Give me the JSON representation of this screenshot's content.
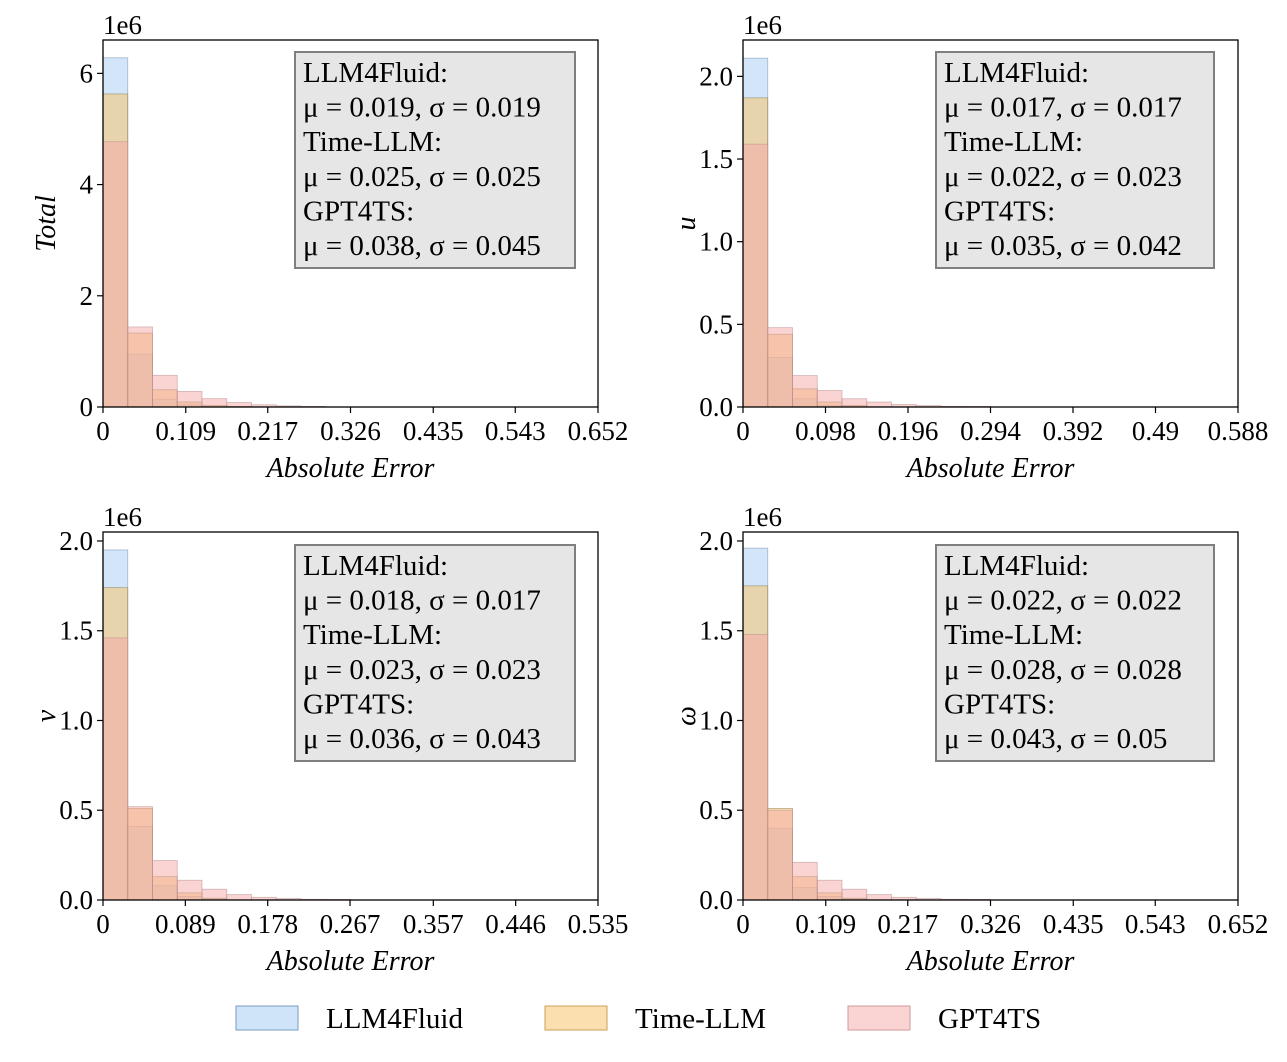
{
  "colors": {
    "LLM4Fluid": "#a8cdf3",
    "Time-LLM": "#f7c46e",
    "GPT4TS": "#f6a8a8",
    "box_fill": "#e6e6e6",
    "box_stroke": "#7f7f7f"
  },
  "legend": {
    "items": [
      {
        "label": "LLM4Fluid",
        "color_key": "LLM4Fluid"
      },
      {
        "label": "Time-LLM",
        "color_key": "Time-LLM"
      },
      {
        "label": "GPT4TS",
        "color_key": "GPT4TS"
      }
    ]
  },
  "chart_data": [
    {
      "type": "bar",
      "subtype": "histogram",
      "ylabel": "Total",
      "xlabel": "Absolute Error",
      "y_offset_label": "1e6",
      "xlim": [
        0,
        0.652
      ],
      "ylim": [
        0,
        6.6
      ],
      "xticks": [
        0,
        0.109,
        0.217,
        0.326,
        0.435,
        0.543,
        0.652
      ],
      "xtick_labels": [
        "0",
        "0.109",
        "0.217",
        "0.326",
        "0.435",
        "0.543",
        "0.652"
      ],
      "yticks": [
        0,
        2,
        4,
        6
      ],
      "ytick_labels": [
        "0",
        "2",
        "4",
        "6"
      ],
      "bin_width": 0.0326,
      "series": [
        {
          "name": "LLM4Fluid",
          "values": [
            6.28,
            0.95,
            0.14,
            0.04,
            0.01,
            0.0,
            0,
            0,
            0,
            0,
            0,
            0,
            0,
            0,
            0,
            0,
            0,
            0,
            0,
            0
          ]
        },
        {
          "name": "Time-LLM",
          "values": [
            5.63,
            1.33,
            0.31,
            0.09,
            0.03,
            0.01,
            0,
            0,
            0,
            0,
            0,
            0,
            0,
            0,
            0,
            0,
            0,
            0,
            0,
            0
          ]
        },
        {
          "name": "GPT4TS",
          "values": [
            4.77,
            1.44,
            0.57,
            0.28,
            0.15,
            0.08,
            0.04,
            0.02,
            0.01,
            0.0,
            0,
            0,
            0,
            0,
            0,
            0,
            0,
            0,
            0,
            0
          ]
        }
      ],
      "stats_lines": [
        "LLM4Fluid:",
        "μ = 0.019, σ = 0.019",
        "Time-LLM:",
        "μ = 0.025, σ = 0.025",
        "GPT4TS:",
        "μ = 0.038, σ = 0.045"
      ]
    },
    {
      "type": "bar",
      "subtype": "histogram",
      "ylabel": "u",
      "xlabel": "Absolute Error",
      "y_offset_label": "1e6",
      "xlim": [
        0,
        0.588
      ],
      "ylim": [
        0,
        2.22
      ],
      "xticks": [
        0,
        0.098,
        0.196,
        0.294,
        0.392,
        0.49,
        0.588
      ],
      "xtick_labels": [
        "0",
        "0.098",
        "0.196",
        "0.294",
        "0.392",
        "0.49",
        "0.588"
      ],
      "yticks": [
        0,
        0.5,
        1.0,
        1.5,
        2.0
      ],
      "ytick_labels": [
        "0.0",
        "0.5",
        "1.0",
        "1.5",
        "2.0"
      ],
      "bin_width": 0.0294,
      "series": [
        {
          "name": "LLM4Fluid",
          "values": [
            2.11,
            0.3,
            0.05,
            0.01,
            0.0,
            0,
            0,
            0,
            0,
            0,
            0,
            0,
            0,
            0,
            0,
            0,
            0,
            0,
            0,
            0
          ]
        },
        {
          "name": "Time-LLM",
          "values": [
            1.87,
            0.44,
            0.11,
            0.03,
            0.01,
            0.0,
            0,
            0,
            0,
            0,
            0,
            0,
            0,
            0,
            0,
            0,
            0,
            0,
            0,
            0
          ]
        },
        {
          "name": "GPT4TS",
          "values": [
            1.59,
            0.48,
            0.19,
            0.1,
            0.05,
            0.03,
            0.015,
            0.008,
            0.004,
            0.002,
            0,
            0,
            0,
            0,
            0,
            0,
            0,
            0,
            0,
            0
          ]
        }
      ],
      "stats_lines": [
        "LLM4Fluid:",
        "μ = 0.017, σ = 0.017",
        "Time-LLM:",
        "μ = 0.022, σ = 0.023",
        "GPT4TS:",
        "μ = 0.035, σ = 0.042"
      ]
    },
    {
      "type": "bar",
      "subtype": "histogram",
      "ylabel": "v",
      "xlabel": "Absolute Error",
      "y_offset_label": "1e6",
      "xlim": [
        0,
        0.535
      ],
      "ylim": [
        0,
        2.05
      ],
      "xticks": [
        0,
        0.089,
        0.178,
        0.267,
        0.357,
        0.446,
        0.535
      ],
      "xtick_labels": [
        "0",
        "0.089",
        "0.178",
        "0.267",
        "0.357",
        "0.446",
        "0.535"
      ],
      "yticks": [
        0,
        0.5,
        1.0,
        1.5,
        2.0
      ],
      "ytick_labels": [
        "0.0",
        "0.5",
        "1.0",
        "1.5",
        "2.0"
      ],
      "bin_width": 0.02675,
      "series": [
        {
          "name": "LLM4Fluid",
          "values": [
            1.95,
            0.41,
            0.08,
            0.02,
            0.005,
            0.0,
            0,
            0,
            0,
            0,
            0,
            0,
            0,
            0,
            0,
            0,
            0,
            0,
            0,
            0
          ]
        },
        {
          "name": "Time-LLM",
          "values": [
            1.74,
            0.51,
            0.13,
            0.04,
            0.01,
            0.0,
            0,
            0,
            0,
            0,
            0,
            0,
            0,
            0,
            0,
            0,
            0,
            0,
            0,
            0
          ]
        },
        {
          "name": "GPT4TS",
          "values": [
            1.46,
            0.52,
            0.22,
            0.11,
            0.06,
            0.03,
            0.015,
            0.008,
            0.004,
            0.002,
            0,
            0,
            0,
            0,
            0,
            0,
            0,
            0,
            0,
            0
          ]
        }
      ],
      "stats_lines": [
        "LLM4Fluid:",
        "μ = 0.018, σ = 0.017",
        "Time-LLM:",
        "μ = 0.023, σ = 0.023",
        "GPT4TS:",
        "μ = 0.036, σ = 0.043"
      ]
    },
    {
      "type": "bar",
      "subtype": "histogram",
      "ylabel": "ω",
      "xlabel": "Absolute Error",
      "y_offset_label": "1e6",
      "xlim": [
        0,
        0.652
      ],
      "ylim": [
        0,
        2.05
      ],
      "xticks": [
        0,
        0.109,
        0.217,
        0.326,
        0.435,
        0.543,
        0.652
      ],
      "xtick_labels": [
        "0",
        "0.109",
        "0.217",
        "0.326",
        "0.435",
        "0.543",
        "0.652"
      ],
      "yticks": [
        0,
        0.5,
        1.0,
        1.5,
        2.0
      ],
      "ytick_labels": [
        "0.0",
        "0.5",
        "1.0",
        "1.5",
        "2.0"
      ],
      "bin_width": 0.0326,
      "series": [
        {
          "name": "LLM4Fluid",
          "values": [
            1.96,
            0.4,
            0.07,
            0.02,
            0.005,
            0.0,
            0,
            0,
            0,
            0,
            0,
            0,
            0,
            0,
            0,
            0,
            0,
            0,
            0,
            0
          ]
        },
        {
          "name": "Time-LLM",
          "values": [
            1.75,
            0.51,
            0.13,
            0.04,
            0.01,
            0.0,
            0,
            0,
            0,
            0,
            0,
            0,
            0,
            0,
            0,
            0,
            0,
            0,
            0,
            0
          ]
        },
        {
          "name": "GPT4TS",
          "values": [
            1.48,
            0.5,
            0.21,
            0.11,
            0.06,
            0.03,
            0.015,
            0.008,
            0.004,
            0.002,
            0,
            0,
            0,
            0,
            0,
            0,
            0,
            0,
            0,
            0
          ]
        }
      ],
      "stats_lines": [
        "LLM4Fluid:",
        "μ = 0.022, σ = 0.022",
        "Time-LLM:",
        "μ = 0.028, σ = 0.028",
        "GPT4TS:",
        "μ = 0.043, σ = 0.05"
      ]
    }
  ]
}
